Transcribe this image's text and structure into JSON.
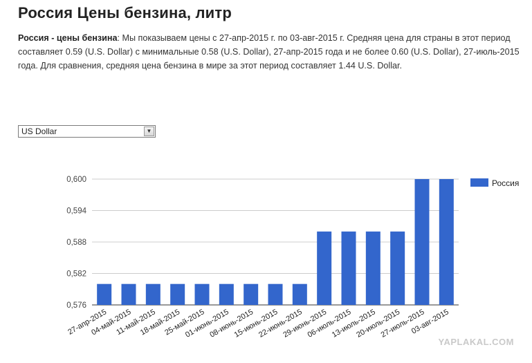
{
  "page": {
    "title": "Россия Цены бензина, литр",
    "desc_lead": "Россия - цены бензина",
    "desc_text": ": Мы показываем цены с 27-апр-2015 г. по 03-авг-2015 г. Средняя цена для страны в этот период составляет 0.59 (U.S. Dollar) с минимальные 0.58 (U.S. Dollar), 27-апр-2015 года и не более 0.60 (U.S. Dollar), 27-июль-2015 года. Для сравнения, средняя цена бензина в мире за этот период составляет 1.44 U.S. Dollar.",
    "currency_select": "US Dollar",
    "watermark": "YAPLAKAL.COM"
  },
  "chart_data": {
    "type": "bar",
    "categories": [
      "27-апр-2015",
      "04-май-2015",
      "11-май-2015",
      "18-май-2015",
      "25-май-2015",
      "01-июнь-2015",
      "08-июнь-2015",
      "15-июнь-2015",
      "22-июнь-2015",
      "29-июнь-2015",
      "06-июль-2015",
      "13-июль-2015",
      "20-июль-2015",
      "27-июль-2015",
      "03-авг-2015"
    ],
    "series": [
      {
        "name": "Россия",
        "color": "#3366cc",
        "values": [
          0.58,
          0.58,
          0.58,
          0.58,
          0.58,
          0.58,
          0.58,
          0.58,
          0.58,
          0.59,
          0.59,
          0.59,
          0.59,
          0.6,
          0.6
        ]
      }
    ],
    "yticks": [
      "0,576",
      "0,582",
      "0,588",
      "0,594",
      "0,600"
    ],
    "ylim": [
      0.576,
      0.6
    ],
    "grid": true,
    "legend": "right"
  }
}
